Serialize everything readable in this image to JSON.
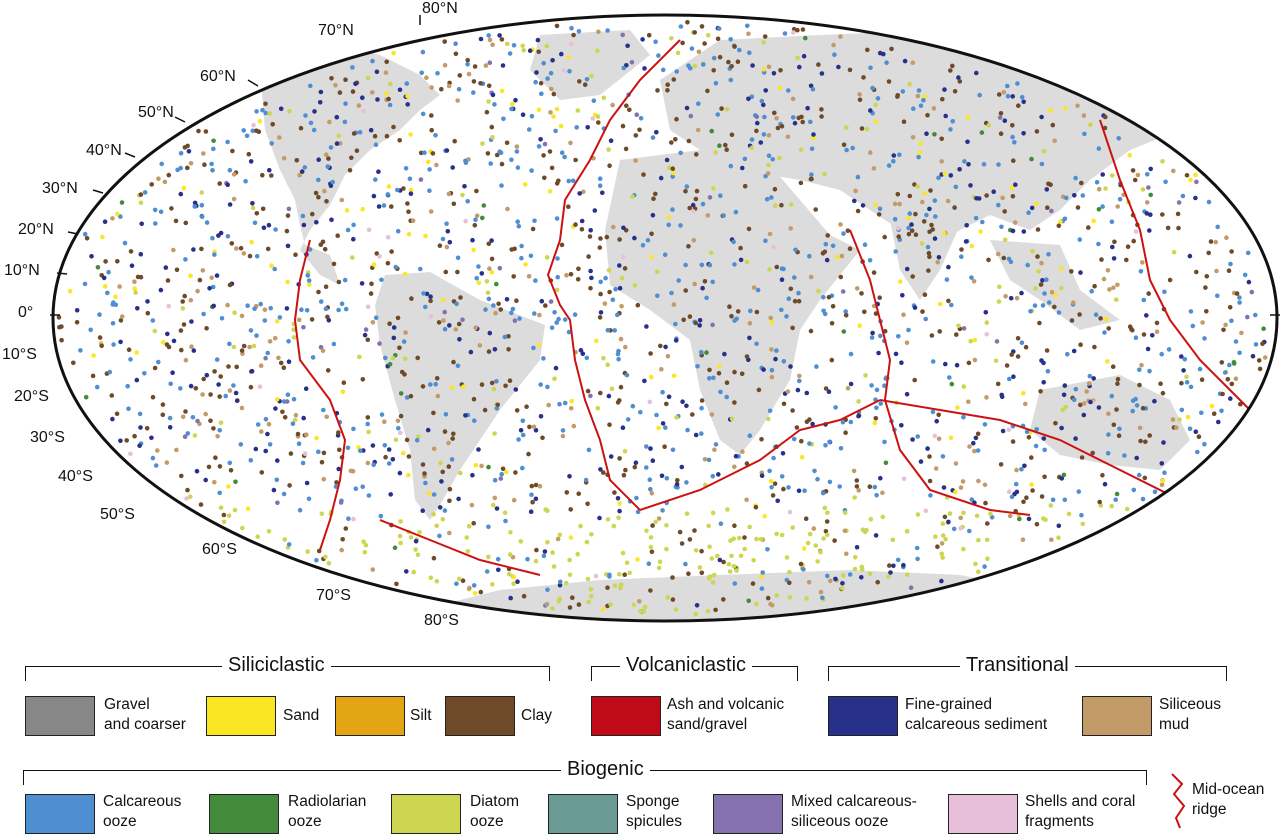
{
  "map": {
    "colors": {
      "ocean": "#ffffff",
      "land": "#dcdcdc",
      "outline": "#111111",
      "ridge": "#cc1111"
    },
    "lat_labels_north": [
      "80°N",
      "70°N",
      "60°N",
      "50°N",
      "40°N",
      "30°N",
      "20°N",
      "10°N",
      "0°"
    ],
    "lat_labels_south": [
      "10°S",
      "20°S",
      "30°S",
      "40°S",
      "50°S",
      "60°S",
      "70°S",
      "80°S"
    ]
  },
  "legend": {
    "groups": {
      "siliciclastic": "Siliciclastic",
      "volcaniclastic": "Volcaniclastic",
      "transitional": "Transitional",
      "biogenic": "Biogenic"
    },
    "items": {
      "gravel": {
        "line1": "Gravel",
        "line2": "and coarser",
        "color": "#878787"
      },
      "sand": {
        "line1": "Sand",
        "line2": "",
        "color": "#fbe625"
      },
      "silt": {
        "line1": "Silt",
        "line2": "",
        "color": "#e3a514"
      },
      "clay": {
        "line1": "Clay",
        "line2": "",
        "color": "#6f4a28"
      },
      "ash": {
        "line1": "Ash and volcanic",
        "line2": "sand/gravel",
        "color": "#c10a17"
      },
      "fine_calc": {
        "line1": "Fine-grained",
        "line2": "calcareous sediment",
        "color": "#27318a"
      },
      "siliceous_mud": {
        "line1": "Siliceous",
        "line2": "mud",
        "color": "#c39b68"
      },
      "calc_ooze": {
        "line1": "Calcareous",
        "line2": "ooze",
        "color": "#4f8fd1"
      },
      "radiolarian": {
        "line1": "Radiolarian",
        "line2": "ooze",
        "color": "#438a3a"
      },
      "diatom": {
        "line1": "Diatom",
        "line2": "ooze",
        "color": "#cdd650"
      },
      "sponge": {
        "line1": "Sponge",
        "line2": "spicules",
        "color": "#6a9b94"
      },
      "mixed": {
        "line1": "Mixed calcareous-",
        "line2": "siliceous ooze",
        "color": "#8571ae"
      },
      "shells": {
        "line1": "Shells and coral",
        "line2": "fragments",
        "color": "#e8bfd8"
      },
      "ridge": {
        "line1": "Mid-ocean",
        "line2": "ridge",
        "color": "#cc1111"
      }
    }
  }
}
